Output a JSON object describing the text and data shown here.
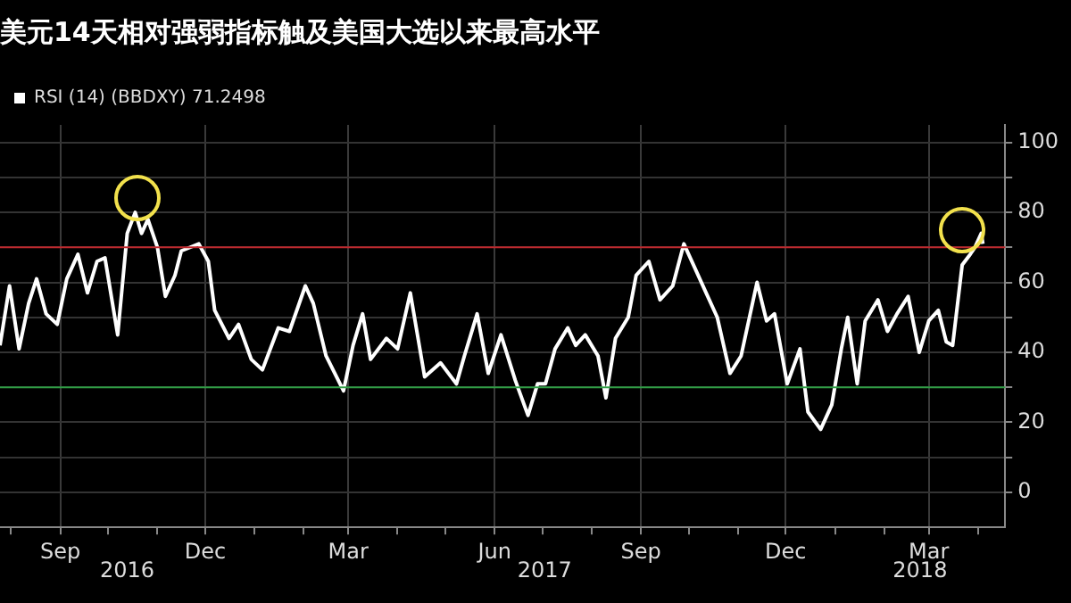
{
  "chart_data": {
    "type": "line",
    "title": "美元14天相对强弱指标触及美国大选以来最高水平",
    "x": [
      "2016-07-25",
      "2016-07-31",
      "2016-08-06",
      "2016-08-12",
      "2016-08-17",
      "2016-08-23",
      "2016-08-30",
      "2016-09-05",
      "2016-09-12",
      "2016-09-18",
      "2016-09-24",
      "2016-09-29",
      "2016-10-07",
      "2016-10-13",
      "2016-10-18",
      "2016-10-22",
      "2016-10-26",
      "2016-11-01",
      "2016-11-06",
      "2016-11-12",
      "2016-11-16",
      "2016-11-27",
      "2016-12-03",
      "2016-12-07",
      "2016-12-16",
      "2016-12-22",
      "2016-12-30",
      "2017-01-06",
      "2017-01-16",
      "2017-01-23",
      "2017-02-02",
      "2017-02-07",
      "2017-02-15",
      "2017-02-26",
      "2017-03-04",
      "2017-03-10",
      "2017-03-15",
      "2017-03-25",
      "2017-04-01",
      "2017-04-09",
      "2017-04-18",
      "2017-04-28",
      "2017-05-08",
      "2017-05-13",
      "2017-05-21",
      "2017-05-28",
      "2017-06-05",
      "2017-06-14",
      "2017-06-22",
      "2017-06-28",
      "2017-07-03",
      "2017-07-09",
      "2017-07-17",
      "2017-07-22",
      "2017-07-28",
      "2017-08-05",
      "2017-08-10",
      "2017-08-16",
      "2017-08-24",
      "2017-08-29",
      "2017-09-06",
      "2017-09-13",
      "2017-09-21",
      "2017-09-28",
      "2017-10-04",
      "2017-10-12",
      "2017-10-19",
      "2017-10-27",
      "2017-11-03",
      "2017-11-13",
      "2017-11-19",
      "2017-11-24",
      "2017-12-02",
      "2017-12-10",
      "2017-12-15",
      "2017-12-23",
      "2017-12-30",
      "2018-01-05",
      "2018-01-09",
      "2018-01-15",
      "2018-01-20",
      "2018-01-28",
      "2018-02-03",
      "2018-02-09",
      "2018-02-16",
      "2018-02-23",
      "2018-03-01",
      "2018-03-07",
      "2018-03-12",
      "2018-03-16",
      "2018-03-22",
      "2018-03-27",
      "2018-03-30",
      "2018-04-03",
      "2018-04-04"
    ],
    "series": [
      {
        "name": "RSI (14) (BBDXY) 71.2498",
        "color": "#ffffff",
        "values": [
          42,
          59,
          41,
          54,
          61,
          51,
          48,
          61,
          68,
          57,
          66,
          67,
          45,
          74,
          80,
          74,
          78,
          70,
          56,
          62,
          69,
          71,
          66,
          52,
          44,
          48,
          38,
          35,
          47,
          46,
          59,
          54,
          39,
          29,
          42,
          51,
          38,
          44,
          41,
          57,
          33,
          37,
          31,
          39,
          51,
          34,
          45,
          32,
          22,
          31,
          31,
          41,
          47,
          42,
          45,
          39,
          27,
          44,
          50,
          62,
          66,
          55,
          59,
          71,
          65,
          57,
          50,
          34,
          39,
          60,
          49,
          51,
          31,
          41,
          23,
          18,
          25,
          41,
          50,
          31,
          49,
          55,
          46,
          51,
          56,
          40,
          49,
          52,
          43,
          42,
          65,
          68,
          70,
          74,
          71
        ]
      }
    ],
    "xlim": [
      "2016-07-25",
      "2018-04-18"
    ],
    "xticks": [
      {
        "value": "2016-08-01",
        "label": null
      },
      {
        "value": "2016-09-01",
        "label": "Sep"
      },
      {
        "value": "2016-10-01",
        "label": null
      },
      {
        "value": "2016-11-01",
        "label": null
      },
      {
        "value": "2016-12-01",
        "label": "Dec"
      },
      {
        "value": "2017-01-01",
        "label": null
      },
      {
        "value": "2017-02-01",
        "label": null
      },
      {
        "value": "2017-03-01",
        "label": "Mar"
      },
      {
        "value": "2017-04-01",
        "label": null
      },
      {
        "value": "2017-05-01",
        "label": null
      },
      {
        "value": "2017-06-01",
        "label": "Jun"
      },
      {
        "value": "2017-07-01",
        "label": null
      },
      {
        "value": "2017-08-01",
        "label": null
      },
      {
        "value": "2017-09-01",
        "label": "Sep"
      },
      {
        "value": "2017-10-01",
        "label": null
      },
      {
        "value": "2017-11-01",
        "label": null
      },
      {
        "value": "2017-12-01",
        "label": "Dec"
      },
      {
        "value": "2018-01-01",
        "label": null
      },
      {
        "value": "2018-02-01",
        "label": null
      },
      {
        "value": "2018-03-01",
        "label": "Mar"
      },
      {
        "value": "2018-04-01",
        "label": null
      }
    ],
    "ylim": [
      -10,
      105
    ],
    "yticks": [
      0,
      {
        "value": 10,
        "label": null
      },
      20,
      {
        "value": 30,
        "label": null
      },
      40,
      {
        "value": 50,
        "label": null
      },
      60,
      {
        "value": 70,
        "label": null
      },
      80,
      {
        "value": 90,
        "label": null
      },
      100
    ],
    "ref_lines": [
      {
        "axis": "y",
        "value": 70,
        "color": "#c0282d"
      },
      {
        "axis": "y",
        "value": 30,
        "color": "#2f9e44"
      }
    ],
    "annotations": [
      "2016",
      "2017",
      "2018"
    ],
    "grid": true,
    "legend": "top left",
    "marker": "none",
    "line_style": "solid"
  }
}
